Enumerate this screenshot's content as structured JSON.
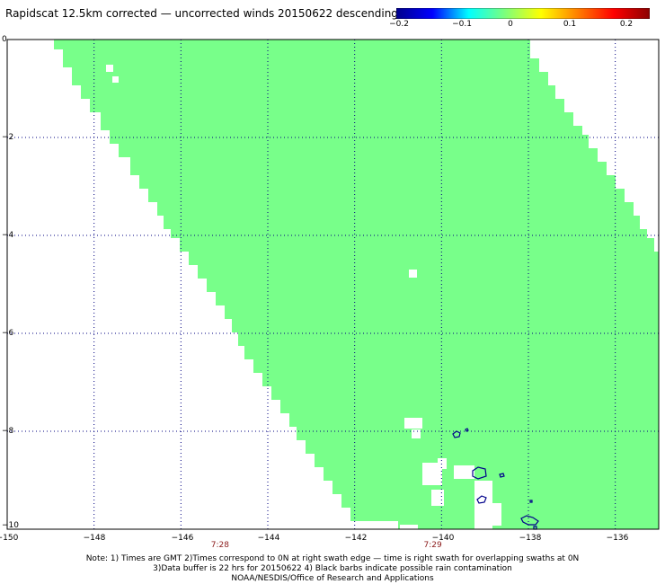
{
  "title": "Rapidscat 12.5km corrected — uncorrected winds 20150622 descending",
  "colorbar": {
    "labels": [
      "−0.2",
      "−0.1",
      "0",
      "0.1",
      "0.2"
    ],
    "colors": [
      "#00008b",
      "#0000ff",
      "#00ffff",
      "#7cff7c",
      "#ffff00",
      "#ff8000",
      "#ff0000",
      "#8b0000"
    ]
  },
  "map": {
    "x_ticks": [
      "−150",
      "−148",
      "−146",
      "−144",
      "−142",
      "−140",
      "−138",
      "−136"
    ],
    "y_ticks": [
      "0",
      "−2",
      "−4",
      "−6",
      "−8",
      "−10"
    ],
    "lon_range": [
      -150,
      -135
    ],
    "lat_range": [
      -10,
      0
    ],
    "swath_value": 0,
    "swath_color": "#78ff8a",
    "coast_color": "#00008b",
    "grid_color": "#000080"
  },
  "times": {
    "left": "7:28",
    "right": "7:29",
    "left_lon": -145.1,
    "right_lon": -140.2
  },
  "notes": {
    "line1": "Note: 1) Times are GMT 2)Times correspond to 0N at right swath edge — time is right swath for overlapping swaths at 0N",
    "line2": "3)Data buffer is 22 hrs for 20150622 4) Black barbs indicate possible rain contamination",
    "line3": "NOAA/NESDIS/Office of Research and Applications"
  }
}
